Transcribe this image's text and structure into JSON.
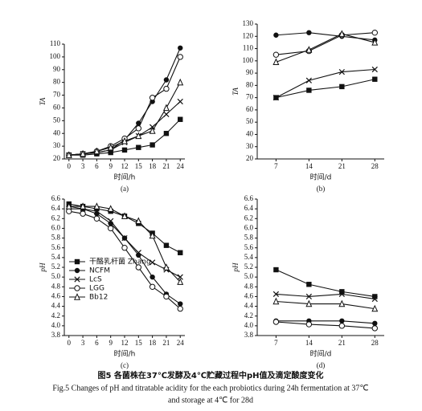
{
  "chart_data": [
    {
      "type": "line",
      "panel_label": "(a)",
      "xlabel": "时间/h",
      "ylabel": "TA",
      "x": [
        0,
        3,
        6,
        9,
        12,
        15,
        18,
        21,
        24
      ],
      "xlim": [
        -1,
        25
      ],
      "xticks": [
        0,
        3,
        6,
        9,
        12,
        15,
        18,
        21,
        24
      ],
      "ylim": [
        20,
        110
      ],
      "yticks": [
        20,
        30,
        40,
        50,
        60,
        70,
        80,
        90,
        100,
        110
      ],
      "series": [
        {
          "marker": "square",
          "color": "#111111",
          "values": [
            23,
            23,
            24,
            25,
            27,
            29,
            31,
            40,
            51
          ]
        },
        {
          "marker": "dot",
          "color": "#111111",
          "values": [
            23,
            24,
            25,
            27,
            35,
            48,
            65,
            82,
            107
          ]
        },
        {
          "marker": "cross",
          "color": "#111111",
          "values": [
            23,
            24,
            25,
            27,
            33,
            38,
            45,
            55,
            65
          ]
        },
        {
          "marker": "circle",
          "color": "#111111",
          "values": [
            23,
            24,
            26,
            30,
            36,
            44,
            68,
            75,
            100
          ]
        },
        {
          "marker": "triangle",
          "color": "#111111",
          "values": [
            23,
            24,
            26,
            29,
            34,
            38,
            42,
            60,
            80
          ]
        }
      ]
    },
    {
      "type": "line",
      "panel_label": "(b)",
      "xlabel": "时间/d",
      "ylabel": "TA",
      "x": [
        7,
        14,
        21,
        28
      ],
      "xlim": [
        3,
        30
      ],
      "xticks": [
        7,
        14,
        21,
        28
      ],
      "ylim": [
        20,
        130
      ],
      "yticks": [
        20,
        30,
        40,
        50,
        60,
        70,
        80,
        90,
        100,
        110,
        120,
        130
      ],
      "series": [
        {
          "marker": "square",
          "color": "#111111",
          "values": [
            70,
            76,
            79,
            85
          ]
        },
        {
          "marker": "dot",
          "color": "#111111",
          "values": [
            121,
            123,
            120,
            117
          ]
        },
        {
          "marker": "cross",
          "color": "#111111",
          "values": [
            70,
            84,
            91,
            93
          ]
        },
        {
          "marker": "circle",
          "color": "#111111",
          "values": [
            105,
            108,
            121,
            123
          ]
        },
        {
          "marker": "triangle",
          "color": "#111111",
          "values": [
            99,
            109,
            122,
            115
          ]
        }
      ]
    },
    {
      "type": "line",
      "panel_label": "(c)",
      "xlabel": "时间/h",
      "ylabel": "pH",
      "legend": "lower left",
      "x": [
        0,
        3,
        6,
        9,
        12,
        15,
        18,
        21,
        24
      ],
      "xlim": [
        -1,
        25
      ],
      "xticks": [
        0,
        3,
        6,
        9,
        12,
        15,
        18,
        21,
        24
      ],
      "ylim": [
        3.8,
        6.6
      ],
      "yticks": [
        3.8,
        {
          "value": 4,
          "label": "4.0"
        },
        4.2,
        4.4,
        4.6,
        4.8,
        {
          "value": 5,
          "label": "5.0"
        },
        5.2,
        5.4,
        5.6,
        5.8,
        {
          "value": 6,
          "label": "6.0"
        },
        6.2,
        6.4,
        6.6
      ],
      "series": [
        {
          "name": "干酪乳杆菌 Zhang",
          "marker": "square",
          "color": "#111111",
          "values": [
            6.5,
            6.45,
            6.4,
            6.35,
            6.25,
            6.1,
            5.9,
            5.65,
            5.5
          ]
        },
        {
          "name": "NCFM",
          "marker": "dot",
          "color": "#111111",
          "values": [
            6.45,
            6.4,
            6.3,
            6.1,
            5.8,
            5.45,
            5.0,
            4.65,
            4.45
          ]
        },
        {
          "name": "LcS",
          "marker": "cross",
          "color": "#111111",
          "values": [
            6.4,
            6.4,
            6.35,
            6.15,
            5.8,
            5.5,
            5.3,
            5.15,
            5.0
          ]
        },
        {
          "name": "LGG",
          "marker": "circle",
          "color": "#111111",
          "values": [
            6.35,
            6.3,
            6.2,
            6.0,
            5.6,
            5.2,
            4.8,
            4.6,
            4.35
          ]
        },
        {
          "name": "Bb12",
          "marker": "triangle",
          "color": "#111111",
          "values": [
            6.45,
            6.45,
            6.45,
            6.4,
            6.25,
            6.15,
            5.85,
            5.2,
            4.9
          ]
        }
      ]
    },
    {
      "type": "line",
      "panel_label": "(d)",
      "xlabel": "时间/d",
      "ylabel": "pH",
      "x": [
        7,
        14,
        21,
        28
      ],
      "xlim": [
        3,
        30
      ],
      "xticks": [
        7,
        14,
        21,
        28
      ],
      "ylim": [
        3.8,
        6.6
      ],
      "yticks": [
        3.8,
        {
          "value": 4,
          "label": "4.0"
        },
        4.2,
        4.4,
        4.6,
        4.8,
        {
          "value": 5,
          "label": "5.0"
        },
        5.2,
        5.4,
        5.6,
        5.8,
        {
          "value": 6,
          "label": "6.0"
        },
        6.2,
        6.4,
        6.6
      ],
      "series": [
        {
          "marker": "square",
          "color": "#111111",
          "values": [
            5.15,
            4.85,
            4.7,
            4.6
          ]
        },
        {
          "marker": "dot",
          "color": "#111111",
          "values": [
            4.1,
            4.1,
            4.1,
            4.05
          ]
        },
        {
          "marker": "cross",
          "color": "#111111",
          "values": [
            4.65,
            4.6,
            4.65,
            4.55
          ]
        },
        {
          "marker": "circle",
          "color": "#111111",
          "values": [
            4.08,
            4.03,
            4.0,
            3.95
          ]
        },
        {
          "marker": "triangle",
          "color": "#111111",
          "values": [
            4.5,
            4.45,
            4.45,
            4.35
          ]
        }
      ]
    }
  ],
  "caption": {
    "zh": "图5  各菌株在37℃发酵及4℃贮藏过程中pH值及滴定酸度变化",
    "en": [
      "Fig.5  Changes of pH and titratable acidity for the each probiotics during 24h fermentation at 37℃",
      "and storage at 4℃ for 28d"
    ]
  }
}
